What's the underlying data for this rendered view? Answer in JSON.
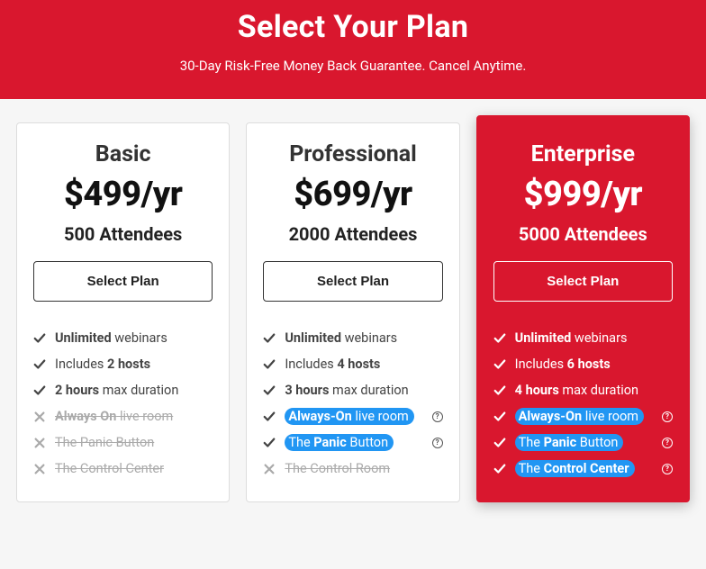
{
  "hero": {
    "title": "Select Your Plan",
    "subtitle": "30-Day Risk-Free Money Back Guarantee. Cancel Anytime."
  },
  "colors": {
    "brand_red": "#d9172e",
    "highlight_blue": "#2196f3",
    "page_bg": "#f6f6f6",
    "card_border": "#dddddd",
    "excluded_gray": "#aaaaaa"
  },
  "select_label": "Select Plan",
  "plans": [
    {
      "name": "Basic",
      "price": "$499/yr",
      "attendees": "500 Attendees",
      "featured": false,
      "features": [
        {
          "included": true,
          "highlight": false,
          "info": false,
          "html": "<b>Unlimited</b> webinars"
        },
        {
          "included": true,
          "highlight": false,
          "info": false,
          "html": "Includes <b>2 hosts</b>"
        },
        {
          "included": true,
          "highlight": false,
          "info": false,
          "html": "<b>2 hours</b> max duration"
        },
        {
          "included": false,
          "highlight": false,
          "info": false,
          "html": "<b>Always On</b> live room"
        },
        {
          "included": false,
          "highlight": false,
          "info": false,
          "html": "The Panic Button"
        },
        {
          "included": false,
          "highlight": false,
          "info": false,
          "html": "The Control Center"
        }
      ]
    },
    {
      "name": "Professional",
      "price": "$699/yr",
      "attendees": "2000 Attendees",
      "featured": false,
      "features": [
        {
          "included": true,
          "highlight": false,
          "info": false,
          "html": "<b>Unlimited</b> webinars"
        },
        {
          "included": true,
          "highlight": false,
          "info": false,
          "html": "Includes <b>4 hosts</b>"
        },
        {
          "included": true,
          "highlight": false,
          "info": false,
          "html": "<b>3 hours</b> max duration"
        },
        {
          "included": true,
          "highlight": true,
          "info": true,
          "html": "<b>Always-On</b> live room"
        },
        {
          "included": true,
          "highlight": true,
          "info": true,
          "html": "The <b>Panic</b> Button"
        },
        {
          "included": false,
          "highlight": false,
          "info": false,
          "html": "The Control Room"
        }
      ]
    },
    {
      "name": "Enterprise",
      "price": "$999/yr",
      "attendees": "5000 Attendees",
      "featured": true,
      "features": [
        {
          "included": true,
          "highlight": false,
          "info": false,
          "html": "<b>Unlimited</b> webinars"
        },
        {
          "included": true,
          "highlight": false,
          "info": false,
          "html": "Includes <b>6 hosts</b>"
        },
        {
          "included": true,
          "highlight": false,
          "info": false,
          "html": "<b>4 hours</b> max duration"
        },
        {
          "included": true,
          "highlight": true,
          "info": true,
          "html": "<b>Always-On</b> live room"
        },
        {
          "included": true,
          "highlight": true,
          "info": true,
          "html": "The <b>Panic</b> Button"
        },
        {
          "included": true,
          "highlight": true,
          "info": true,
          "html": "The <b>Control Center</b>"
        }
      ]
    }
  ]
}
